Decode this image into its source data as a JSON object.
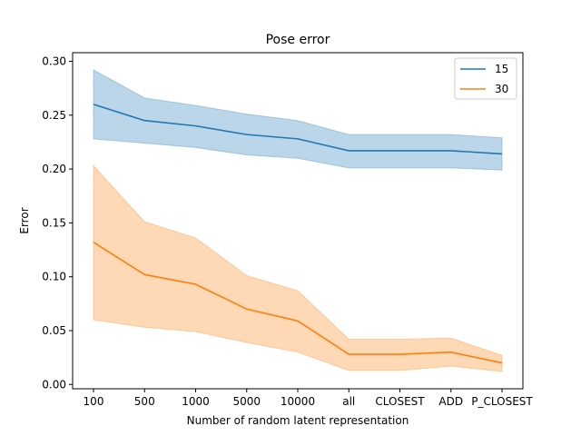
{
  "chart_data": {
    "type": "line",
    "title": "Pose error",
    "xlabel": "Number of random latent representation",
    "ylabel": "Error",
    "categories": [
      "100",
      "500",
      "1000",
      "5000",
      "10000",
      "all",
      "CLOSEST",
      "ADD",
      "P_CLOSEST"
    ],
    "ylim": [
      -0.004,
      0.308
    ],
    "yticks": [
      0.0,
      0.05,
      0.1,
      0.15,
      0.2,
      0.25,
      0.3
    ],
    "ytick_labels": [
      "0.00",
      "0.05",
      "0.10",
      "0.15",
      "0.20",
      "0.25",
      "0.30"
    ],
    "grid": false,
    "legend_position": "top-right",
    "series": [
      {
        "name": "15",
        "color": "#1f77b4",
        "values": [
          0.26,
          0.245,
          0.24,
          0.232,
          0.228,
          0.217,
          0.217,
          0.217,
          0.214
        ],
        "lower": [
          0.228,
          0.224,
          0.22,
          0.213,
          0.21,
          0.201,
          0.201,
          0.201,
          0.199
        ],
        "upper": [
          0.292,
          0.266,
          0.259,
          0.251,
          0.245,
          0.232,
          0.232,
          0.232,
          0.229
        ]
      },
      {
        "name": "30",
        "color": "#ff7f0e",
        "values": [
          0.132,
          0.102,
          0.093,
          0.07,
          0.059,
          0.028,
          0.028,
          0.03,
          0.02
        ],
        "lower": [
          0.06,
          0.053,
          0.049,
          0.039,
          0.03,
          0.013,
          0.013,
          0.017,
          0.012
        ],
        "upper": [
          0.203,
          0.151,
          0.136,
          0.101,
          0.087,
          0.042,
          0.042,
          0.043,
          0.027
        ]
      }
    ]
  }
}
